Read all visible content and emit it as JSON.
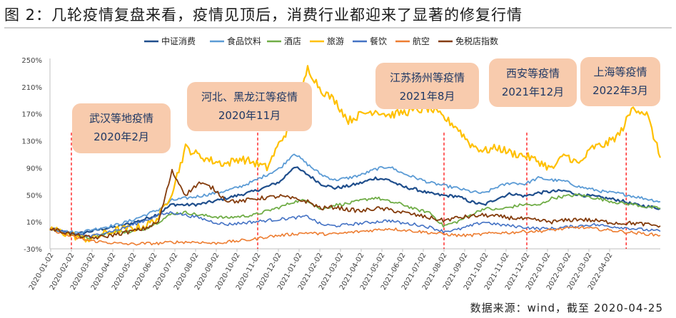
{
  "title": "图 2：几轮疫情复盘来看，疫情见顶后，消费行业都迎来了显著的修复行情",
  "source": "数据来源：wind，截至 2020-04-25",
  "chart_data": {
    "type": "line",
    "title": "图 2：几轮疫情复盘来看，疫情见顶后，消费行业都迎来了显著的修复行情",
    "xlabel": "",
    "ylabel": "",
    "ylim": [
      -30,
      250
    ],
    "y_ticks": [
      "250%",
      "210%",
      "170%",
      "130%",
      "90%",
      "50%",
      "10%",
      "-30%"
    ],
    "y_tick_values": [
      250,
      210,
      170,
      130,
      90,
      50,
      10,
      -30
    ],
    "x_ticks": [
      "2020-01-02",
      "2020-02-02",
      "2020-03-02",
      "2020-04-02",
      "2020-05-02",
      "2020-06-02",
      "2020-07-02",
      "2020-08-02",
      "2020-09-02",
      "2020-10-02",
      "2020-11-02",
      "2020-12-02",
      "2021-01-02",
      "2021-02-02",
      "2021-03-02",
      "2021-04-02",
      "2021-05-02",
      "2021-06-02",
      "2021-07-02",
      "2021-08-02",
      "2021-09-02",
      "2021-10-02",
      "2021-11-02",
      "2021-12-02",
      "2022-01-02",
      "2022-02-02",
      "2022-03-02",
      "2022-04-02"
    ],
    "grid": false,
    "legend_position": "top",
    "series": [
      {
        "name": "中证消费",
        "color": "#1f4e8c",
        "width": 2.2,
        "values": [
          0,
          -5,
          -8,
          -4,
          0,
          3,
          8,
          14,
          22,
          36,
          35,
          36,
          40,
          45,
          50,
          55,
          62,
          70,
          92,
          80,
          66,
          60,
          63,
          68,
          75,
          72,
          62,
          58,
          52,
          49,
          48,
          40,
          35,
          45,
          52,
          48,
          53,
          55,
          56,
          50,
          48,
          45,
          42,
          36,
          33,
          30
        ]
      },
      {
        "name": "食品饮料",
        "color": "#5b9bd5",
        "width": 1.8,
        "values": [
          0,
          -4,
          -6,
          -2,
          2,
          6,
          12,
          20,
          28,
          42,
          45,
          48,
          52,
          56,
          62,
          70,
          80,
          90,
          112,
          95,
          80,
          72,
          75,
          80,
          88,
          92,
          82,
          75,
          68,
          64,
          60,
          55,
          52,
          62,
          68,
          66,
          75,
          72,
          70,
          62,
          58,
          54,
          52,
          48,
          44,
          40
        ]
      },
      {
        "name": "酒店",
        "color": "#70ad47",
        "width": 1.8,
        "values": [
          0,
          -6,
          -10,
          -14,
          -8,
          -4,
          -5,
          0,
          10,
          22,
          24,
          20,
          18,
          16,
          18,
          20,
          26,
          32,
          40,
          42,
          28,
          35,
          37,
          42,
          46,
          40,
          36,
          28,
          24,
          4,
          10,
          20,
          30,
          28,
          32,
          36,
          34,
          45,
          48,
          50,
          46,
          42,
          38,
          36,
          32,
          30
        ]
      },
      {
        "name": "旅游",
        "color": "#ffc000",
        "width": 2.2,
        "values": [
          0,
          -6,
          -12,
          -16,
          -8,
          -2,
          0,
          4,
          16,
          55,
          120,
          108,
          100,
          96,
          104,
          98,
          90,
          130,
          160,
          238,
          205,
          190,
          160,
          170,
          175,
          168,
          172,
          175,
          178,
          165,
          150,
          125,
          115,
          120,
          112,
          108,
          100,
          88,
          110,
          95,
          120,
          125,
          140,
          180,
          170,
          105
        ]
      },
      {
        "name": "餐饮",
        "color": "#4472c4",
        "width": 1.6,
        "values": [
          0,
          -6,
          -8,
          -12,
          -6,
          -2,
          5,
          12,
          20,
          24,
          20,
          16,
          10,
          6,
          8,
          10,
          12,
          14,
          16,
          18,
          6,
          4,
          6,
          8,
          10,
          12,
          8,
          6,
          2,
          -4,
          -2,
          4,
          10,
          6,
          4,
          2,
          0,
          0,
          2,
          4,
          6,
          4,
          2,
          0,
          -2,
          -4
        ]
      },
      {
        "name": "航空",
        "color": "#ed7d31",
        "width": 1.6,
        "values": [
          0,
          -8,
          -14,
          -18,
          -20,
          -22,
          -23,
          -22,
          -22,
          -20,
          -20,
          -20,
          -22,
          -20,
          -18,
          -16,
          -12,
          -10,
          -8,
          -6,
          -8,
          -8,
          -6,
          -4,
          -2,
          0,
          -2,
          -4,
          -6,
          -8,
          -10,
          -10,
          -8,
          -6,
          -6,
          -4,
          -4,
          -2,
          0,
          2,
          0,
          -2,
          -4,
          -6,
          -8,
          -10
        ]
      },
      {
        "name": "免税店指数",
        "color": "#843c0c",
        "width": 1.8,
        "values": [
          0,
          -5,
          -10,
          -14,
          -12,
          -8,
          -4,
          0,
          10,
          85,
          50,
          68,
          60,
          42,
          40,
          44,
          46,
          48,
          44,
          40,
          30,
          32,
          28,
          26,
          30,
          28,
          24,
          20,
          16,
          12,
          16,
          18,
          20,
          18,
          16,
          14,
          12,
          10,
          12,
          14,
          12,
          10,
          8,
          8,
          6,
          4
        ]
      }
    ],
    "annotations": [
      {
        "text_lines": [
          "武汉等地疫情",
          "2020年2月"
        ],
        "date": "2020-02-02"
      },
      {
        "text_lines": [
          "河北、黑龙江等疫情",
          "2020年11月"
        ],
        "date": "2020-11-02"
      },
      {
        "text_lines": [
          "江苏扬州等疫情",
          "2021年8月"
        ],
        "date": "2021-08-02"
      },
      {
        "text_lines": [
          "西安等疫情",
          "2021年12月"
        ],
        "date": "2021-12-02"
      },
      {
        "text_lines": [
          "上海等疫情",
          "2022年3月"
        ],
        "date": "2022-04-25"
      }
    ],
    "annotation_fill": "#f8cbad",
    "marker_color": "#ff0000",
    "axis_color": "#bfbfbf"
  }
}
